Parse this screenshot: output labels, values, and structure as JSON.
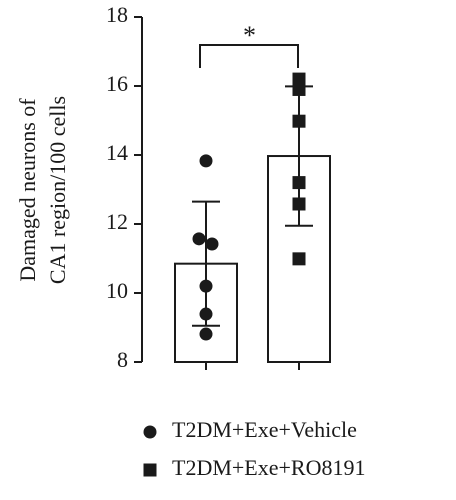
{
  "chart_data": {
    "type": "bar_scatter",
    "ylabel": [
      "Damaged neurons of",
      "CA1 region/100 cells"
    ],
    "ylim": [
      8,
      18
    ],
    "yticks": [
      8,
      10,
      12,
      14,
      16,
      18
    ],
    "annotation": "*",
    "series": [
      {
        "name": "T2DM+Exe+Vehicle",
        "marker": "circle",
        "color": "#1a1a1a",
        "mean": 10.85,
        "sd": 1.8,
        "values": [
          13.83,
          11.57,
          11.42,
          10.2,
          9.39,
          8.81
        ]
      },
      {
        "name": "T2DM+Exe+RO8191",
        "marker": "square",
        "color": "#1a1a1a",
        "mean": 13.97,
        "sd": 2.02,
        "values": [
          16.2,
          15.9,
          14.98,
          13.2,
          12.58,
          10.99
        ]
      }
    ]
  }
}
